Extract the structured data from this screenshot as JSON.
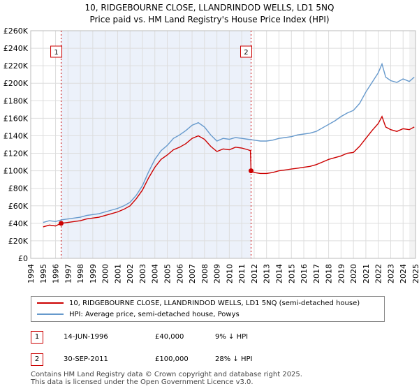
{
  "chart_data": {
    "type": "line",
    "title": "10, RIDGEBOURNE CLOSE, LLANDRINDOD WELLS, LD1 5NQ",
    "subtitle": "Price paid vs. HM Land Registry's House Price Index (HPI)",
    "ylim": [
      0,
      260000
    ],
    "xlim": [
      1994,
      2025
    ],
    "y_ticks": [
      0,
      20000,
      40000,
      60000,
      80000,
      100000,
      120000,
      140000,
      160000,
      180000,
      200000,
      220000,
      240000,
      260000
    ],
    "y_tick_labels": [
      "£0",
      "£20K",
      "£40K",
      "£60K",
      "£80K",
      "£100K",
      "£120K",
      "£140K",
      "£160K",
      "£180K",
      "£200K",
      "£220K",
      "£240K",
      "£260K"
    ],
    "x_ticks": [
      1994,
      1995,
      1996,
      1997,
      1998,
      1999,
      2000,
      2001,
      2002,
      2003,
      2004,
      2005,
      2006,
      2007,
      2008,
      2009,
      2010,
      2011,
      2012,
      2013,
      2014,
      2015,
      2016,
      2017,
      2018,
      2019,
      2020,
      2021,
      2022,
      2023,
      2024,
      2025
    ],
    "x_tick_labels": [
      "1994",
      "1995",
      "1996",
      "1997",
      "1998",
      "1999",
      "2000",
      "2001",
      "2002",
      "2003",
      "2004",
      "2005",
      "2006",
      "2007",
      "2008",
      "2009",
      "2010",
      "2011",
      "2012",
      "2013",
      "2014",
      "2015",
      "2016",
      "2017",
      "2018",
      "2019",
      "2020",
      "2021",
      "2022",
      "2023",
      "2024",
      "2025"
    ],
    "grid": true,
    "series": [
      {
        "name": "10, RIDGEBOURNE CLOSE, LLANDRINDOD WELLS, LD1 5NQ (semi-detached house)",
        "color": "#cc0000",
        "x": [
          1995.0,
          1995.5,
          1996.0,
          1996.45,
          1997.0,
          1997.5,
          1998.0,
          1998.5,
          1999.0,
          1999.5,
          2000.0,
          2000.5,
          2001.0,
          2001.5,
          2002.0,
          2002.5,
          2003.0,
          2003.5,
          2004.0,
          2004.5,
          2005.0,
          2005.5,
          2006.0,
          2006.5,
          2007.0,
          2007.5,
          2008.0,
          2008.5,
          2009.0,
          2009.5,
          2010.0,
          2010.5,
          2011.0,
          2011.5,
          2011.7,
          2011.75,
          2012.0,
          2012.5,
          2013.0,
          2013.5,
          2014.0,
          2014.5,
          2015.0,
          2015.5,
          2016.0,
          2016.5,
          2017.0,
          2017.5,
          2018.0,
          2018.5,
          2019.0,
          2019.5,
          2020.0,
          2020.5,
          2021.0,
          2021.5,
          2022.0,
          2022.3,
          2022.6,
          2023.0,
          2023.5,
          2024.0,
          2024.5,
          2024.9
        ],
        "values": [
          36000,
          38000,
          37000,
          40000,
          41000,
          42000,
          43000,
          45000,
          46000,
          47000,
          49000,
          51000,
          53000,
          56000,
          60000,
          68000,
          78000,
          92000,
          104000,
          113000,
          118000,
          124000,
          127000,
          131000,
          137000,
          140000,
          136000,
          128000,
          122000,
          125000,
          124000,
          127000,
          126000,
          124000,
          123000,
          100000,
          98000,
          97000,
          97000,
          98000,
          100000,
          101000,
          102000,
          103000,
          104000,
          105000,
          107000,
          110000,
          113000,
          115000,
          117000,
          120000,
          121000,
          128000,
          137000,
          146000,
          154000,
          162000,
          150000,
          147000,
          145000,
          148000,
          147000,
          150000
        ]
      },
      {
        "name": "HPI: Average price, semi-detached house, Powys",
        "color": "#6699cc",
        "x": [
          1995.0,
          1995.5,
          1996.0,
          1996.5,
          1997.0,
          1997.5,
          1998.0,
          1998.5,
          1999.0,
          1999.5,
          2000.0,
          2000.5,
          2001.0,
          2001.5,
          2002.0,
          2002.5,
          2003.0,
          2003.5,
          2004.0,
          2004.5,
          2005.0,
          2005.5,
          2006.0,
          2006.5,
          2007.0,
          2007.5,
          2008.0,
          2008.5,
          2009.0,
          2009.5,
          2010.0,
          2010.5,
          2011.0,
          2011.5,
          2012.0,
          2012.5,
          2013.0,
          2013.5,
          2014.0,
          2014.5,
          2015.0,
          2015.5,
          2016.0,
          2016.5,
          2017.0,
          2017.5,
          2018.0,
          2018.5,
          2019.0,
          2019.5,
          2020.0,
          2020.5,
          2021.0,
          2021.5,
          2022.0,
          2022.3,
          2022.6,
          2023.0,
          2023.5,
          2024.0,
          2024.5,
          2024.9
        ],
        "values": [
          41000,
          43000,
          42000,
          44000,
          45000,
          46000,
          47000,
          49000,
          50000,
          51000,
          53000,
          55000,
          57000,
          60000,
          64000,
          72000,
          83000,
          99000,
          113000,
          123000,
          129000,
          137000,
          141000,
          146000,
          152000,
          155000,
          150000,
          141000,
          134000,
          137000,
          136000,
          138000,
          137000,
          136000,
          135000,
          134000,
          134000,
          135000,
          137000,
          138000,
          139000,
          141000,
          142000,
          143000,
          145000,
          149000,
          153000,
          157000,
          162000,
          166000,
          169000,
          177000,
          190000,
          201000,
          212000,
          222000,
          207000,
          203000,
          201000,
          205000,
          202000,
          207000
        ]
      }
    ],
    "annotations": [
      {
        "label": "1",
        "x": 1996.45,
        "value": 40000
      },
      {
        "label": "2",
        "x": 2011.75,
        "value": 100000
      }
    ]
  },
  "legend": {
    "property": "10, RIDGEBOURNE CLOSE, LLANDRINDOD WELLS, LD1 5NQ (semi-detached house)",
    "hpi": "HPI: Average price, semi-detached house, Powys"
  },
  "sales": [
    {
      "num": "1",
      "date": "14-JUN-1996",
      "price": "£40,000",
      "hpi": "9% ↓ HPI"
    },
    {
      "num": "2",
      "date": "30-SEP-2011",
      "price": "£100,000",
      "hpi": "28% ↓ HPI"
    }
  ],
  "footer": {
    "line1": "Contains HM Land Registry data © Crown copyright and database right 2025.",
    "line2": "This data is licensed under the Open Government Licence v3.0."
  },
  "colors": {
    "property": "#cc0000",
    "hpi": "#6699cc",
    "shade": "#dde6f5"
  }
}
